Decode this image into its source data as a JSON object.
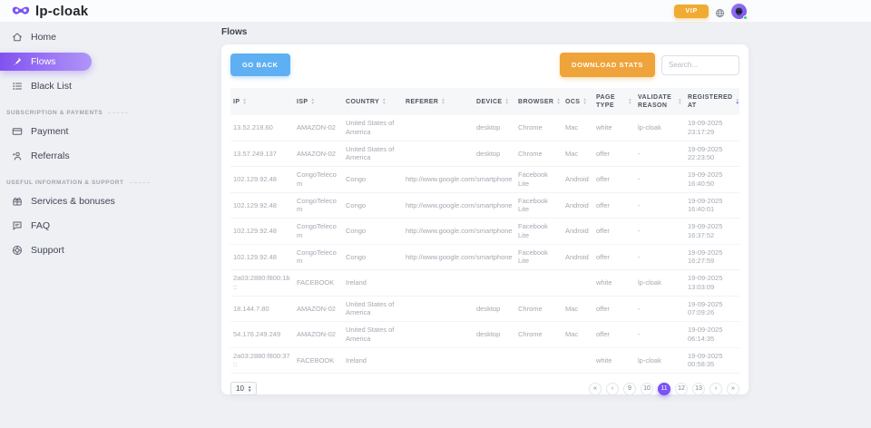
{
  "header": {
    "logo_text": "lp-cloak",
    "vip_label": "VIP"
  },
  "sidebar": {
    "main_items": [
      {
        "label": "Home",
        "icon": "home-icon",
        "active": false
      },
      {
        "label": "Flows",
        "icon": "flows-icon",
        "active": true
      },
      {
        "label": "Black List",
        "icon": "blacklist-icon",
        "active": false
      }
    ],
    "sections": [
      {
        "title": "Subscription & payments",
        "items": [
          {
            "label": "Payment",
            "icon": "payment-icon"
          },
          {
            "label": "Referrals",
            "icon": "referrals-icon"
          }
        ]
      },
      {
        "title": "Useful information & support",
        "items": [
          {
            "label": "Services & bonuses",
            "icon": "services-icon"
          },
          {
            "label": "FAQ",
            "icon": "faq-icon"
          },
          {
            "label": "Support",
            "icon": "support-icon"
          }
        ]
      }
    ]
  },
  "page": {
    "title": "Flows"
  },
  "toolbar": {
    "go_back_label": "GO BACK",
    "download_stats_label": "DOWNLOAD STATS",
    "search_placeholder": "Search..."
  },
  "table": {
    "columns": [
      {
        "label": "IP"
      },
      {
        "label": "ISP"
      },
      {
        "label": "Country"
      },
      {
        "label": "Referer"
      },
      {
        "label": "Device"
      },
      {
        "label": "Browser"
      },
      {
        "label": "Ocs"
      },
      {
        "label": "Page type"
      },
      {
        "label": "Validate reason"
      },
      {
        "label": "Registered at",
        "sort_active": "desc"
      }
    ],
    "rows": [
      [
        "13.52.218.60",
        "AMAZON-02",
        "United States of America",
        "",
        "desktop",
        "Chrome",
        "Mac",
        "white",
        "lp-cloak",
        "19-09-2025 23:17:29"
      ],
      [
        "13.57.249.137",
        "AMAZON-02",
        "United States of America",
        "",
        "desktop",
        "Chrome",
        "Mac",
        "offer",
        "-",
        "19-09-2025 22:23:50"
      ],
      [
        "102.129.92.48",
        "CongoTelecom",
        "Congo",
        "http://www.google.com/",
        "smartphone",
        "Facebook Lite",
        "Android",
        "offer",
        "-",
        "19-09-2025 16:40:50"
      ],
      [
        "102.129.92.48",
        "CongoTelecom",
        "Congo",
        "http://www.google.com/",
        "smartphone",
        "Facebook Lite",
        "Android",
        "offer",
        "-",
        "19-09-2025 16:40:01"
      ],
      [
        "102.129.92.48",
        "CongoTelecom",
        "Congo",
        "http://www.google.com/",
        "smartphone",
        "Facebook Lite",
        "Android",
        "offer",
        "-",
        "19-09-2025 16:37:52"
      ],
      [
        "102.129.92.48",
        "CongoTelecom",
        "Congo",
        "http://www.google.com/",
        "smartphone",
        "Facebook Lite",
        "Android",
        "offer",
        "-",
        "19-09-2025 16:27:59"
      ],
      [
        "2a03:2880:f800:1b::",
        "FACEBOOK",
        "Ireland",
        "",
        "",
        "",
        "",
        "white",
        "lp-cloak",
        "19-09-2025 13:03:09"
      ],
      [
        "18.144.7.80",
        "AMAZON-02",
        "United States of America",
        "",
        "desktop",
        "Chrome",
        "Mac",
        "offer",
        "-",
        "19-09-2025 07:09:26"
      ],
      [
        "54.176.249.249",
        "AMAZON-02",
        "United States of America",
        "",
        "desktop",
        "Chrome",
        "Mac",
        "offer",
        "-",
        "19-09-2025 06:14:35"
      ],
      [
        "2a03:2880:f800:37::",
        "FACEBOOK",
        "Ireland",
        "",
        "",
        "",
        "",
        "white",
        "lp-cloak",
        "19-09-2025 00:58:35"
      ]
    ]
  },
  "footer": {
    "page_size": "10",
    "pagination": [
      {
        "label": "«",
        "name": "first-page-button"
      },
      {
        "label": "‹",
        "name": "prev-page-button"
      },
      {
        "label": "9"
      },
      {
        "label": "10"
      },
      {
        "label": "11",
        "active": true
      },
      {
        "label": "12"
      },
      {
        "label": "13"
      },
      {
        "label": "›",
        "name": "next-page-button"
      },
      {
        "label": "»",
        "name": "last-page-button"
      }
    ]
  },
  "colors": {
    "accent_purple": "#7b52f4",
    "vip_orange": "#f0ab33",
    "go_back_blue": "#5fb0f2",
    "download_orange": "#eea43a",
    "active_sort": "#6e6bf2"
  }
}
